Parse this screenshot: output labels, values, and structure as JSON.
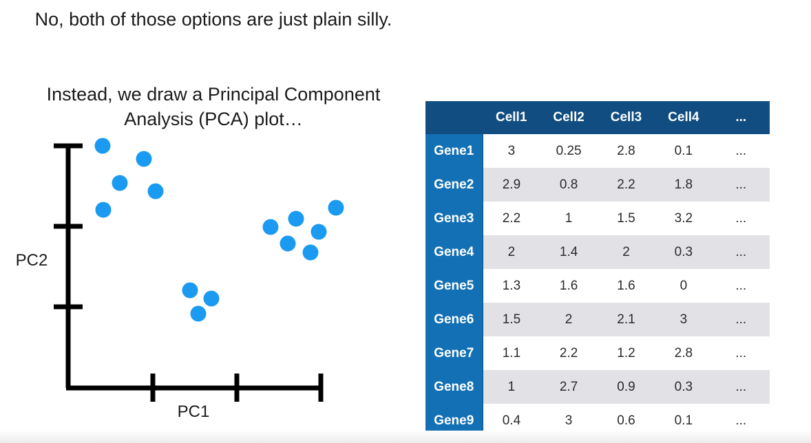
{
  "captions": {
    "line1": "No, both of those options are just plain silly.",
    "line2": "Instead, we draw a Principal Component Analysis (PCA) plot…"
  },
  "plot": {
    "xlabel": "PC1",
    "ylabel": "PC2",
    "point_color": "#1a9af0",
    "axis_color": "#000000"
  },
  "table": {
    "columns": [
      "Cell1",
      "Cell2",
      "Cell3",
      "Cell4",
      "..."
    ],
    "rows": [
      {
        "gene": "Gene1",
        "values": [
          "3",
          "0.25",
          "2.8",
          "0.1",
          "..."
        ]
      },
      {
        "gene": "Gene2",
        "values": [
          "2.9",
          "0.8",
          "2.2",
          "1.8",
          "..."
        ]
      },
      {
        "gene": "Gene3",
        "values": [
          "2.2",
          "1",
          "1.5",
          "3.2",
          "..."
        ]
      },
      {
        "gene": "Gene4",
        "values": [
          "2",
          "1.4",
          "2",
          "0.3",
          "..."
        ]
      },
      {
        "gene": "Gene5",
        "values": [
          "1.3",
          "1.6",
          "1.6",
          "0",
          "..."
        ]
      },
      {
        "gene": "Gene6",
        "values": [
          "1.5",
          "2",
          "2.1",
          "3",
          "..."
        ]
      },
      {
        "gene": "Gene7",
        "values": [
          "1.1",
          "2.2",
          "1.2",
          "2.8",
          "..."
        ]
      },
      {
        "gene": "Gene8",
        "values": [
          "1",
          "2.7",
          "0.9",
          "0.3",
          "..."
        ]
      },
      {
        "gene": "Gene9",
        "values": [
          "0.4",
          "3",
          "0.6",
          "0.1",
          "..."
        ]
      }
    ],
    "header_color": "#114d80",
    "row_header_color": "#1470b4",
    "stripe_color": "#e2e2e6"
  }
}
